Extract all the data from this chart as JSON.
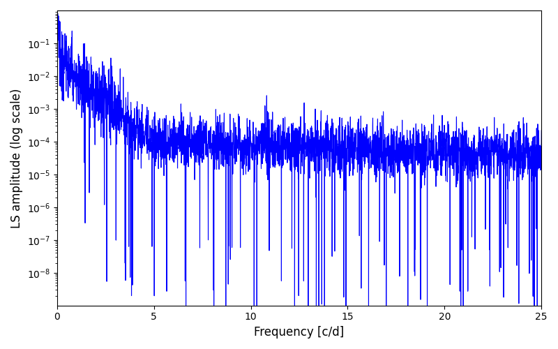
{
  "title": "",
  "xlabel": "Frequency [c/d]",
  "ylabel": "LS amplitude (log scale)",
  "xlim": [
    0,
    25
  ],
  "ylim_log": [
    -9,
    0
  ],
  "line_color": "#0000FF",
  "line_width": 0.8,
  "background_color": "#ffffff",
  "seed": 12345,
  "n_points": 3000,
  "freq_max": 25.0,
  "yticks": [
    1e-08,
    1e-07,
    1e-06,
    1e-05,
    0.0001,
    0.001,
    0.01,
    0.1
  ],
  "xticks": [
    0,
    5,
    10,
    15,
    20,
    25
  ]
}
